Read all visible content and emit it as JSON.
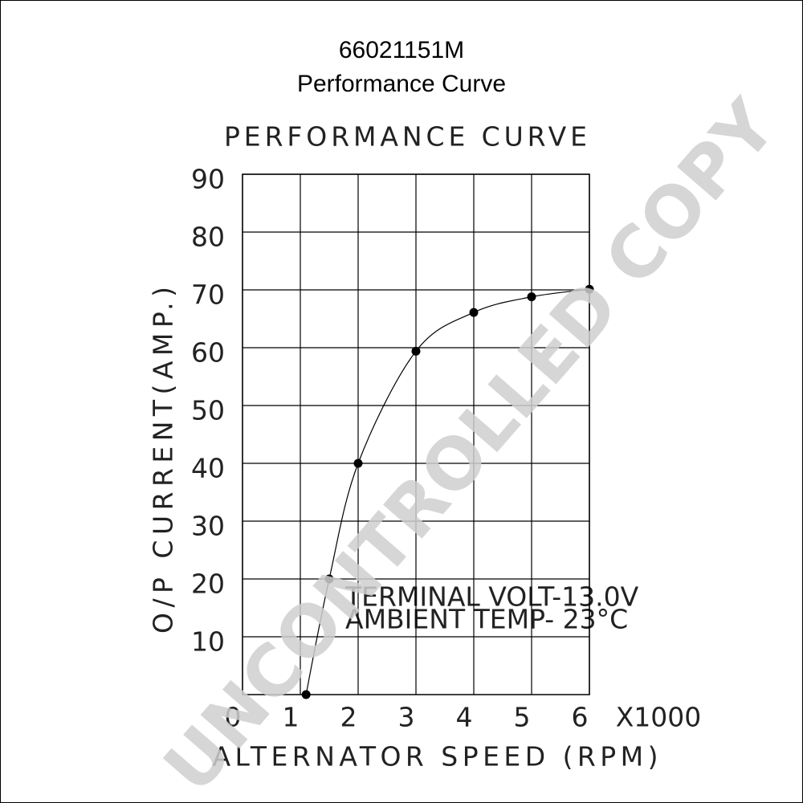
{
  "chart_data": {
    "type": "line",
    "title": "66021151M",
    "subtitle": "Performance Curve",
    "chart_title": "PERFORMANCE CURVE",
    "x_label": "ALTERNATOR SPEED (RPM)",
    "x_multiplier": "X1000",
    "y_label": "O/P CURRENT(AMP.)",
    "annotations": [
      "TERMINAL VOLT-13.0V",
      "AMBIENT TEMP- 23°C"
    ],
    "watermark": "UNCONTROLLED COPY",
    "x": [
      1.1,
      1.5,
      2,
      3,
      4,
      5,
      6
    ],
    "values": [
      0,
      20,
      40,
      59.4,
      66.1,
      68.8,
      70.1
    ],
    "color": "#000000",
    "xlim": [
      0,
      6
    ],
    "xticks": [
      0,
      1,
      2,
      3,
      4,
      5,
      6
    ],
    "ylim": [
      0,
      90
    ],
    "yticks": [
      10,
      20,
      30,
      40,
      50,
      60,
      70,
      80,
      90
    ],
    "grid": true
  }
}
